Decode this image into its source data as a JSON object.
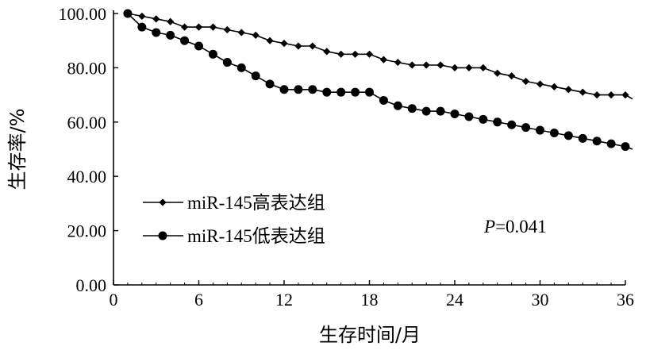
{
  "chart_data": {
    "type": "line",
    "title": "",
    "xlabel": "生存时间/月",
    "ylabel": "生存率/%",
    "xlim": [
      0,
      36
    ],
    "ylim": [
      0,
      100
    ],
    "x_ticks": [
      0,
      6,
      12,
      18,
      24,
      30,
      36
    ],
    "x_tick_labels": [
      "0",
      "6",
      "12",
      "18",
      "24",
      "30",
      "36"
    ],
    "y_ticks": [
      0,
      20,
      40,
      60,
      80,
      100
    ],
    "y_tick_labels": [
      "0.00",
      "20.00",
      "40.00",
      "60.00",
      "80.00",
      "100.00"
    ],
    "grid": false,
    "legend_position": "bottom-left",
    "annotation": {
      "p_label": "P",
      "p_value": "=0.041"
    },
    "series": [
      {
        "name": "miR-145高表达组",
        "marker": "diamond",
        "x": [
          1,
          2,
          3,
          4,
          5,
          6,
          7,
          8,
          9,
          10,
          11,
          12,
          13,
          14,
          15,
          16,
          17,
          18,
          19,
          20,
          21,
          22,
          23,
          24,
          25,
          26,
          27,
          28,
          29,
          30,
          31,
          32,
          33,
          34,
          35,
          36
        ],
        "y": [
          100,
          99,
          98,
          97,
          95,
          95,
          95,
          94,
          93,
          92,
          90,
          89,
          88,
          88,
          86,
          85,
          85,
          85,
          83,
          82,
          81,
          81,
          81,
          80,
          80,
          80,
          78,
          77,
          75,
          74,
          73,
          72,
          71,
          70,
          70,
          70
        ],
        "end": [
          36.5,
          68.5
        ]
      },
      {
        "name": "miR-145低表达组",
        "marker": "circle",
        "x": [
          1,
          2,
          3,
          4,
          5,
          6,
          7,
          8,
          9,
          10,
          11,
          12,
          13,
          14,
          15,
          16,
          17,
          18,
          19,
          20,
          21,
          22,
          23,
          24,
          25,
          26,
          27,
          28,
          29,
          30,
          31,
          32,
          33,
          34,
          35,
          36
        ],
        "y": [
          100,
          95,
          93,
          92,
          90,
          88,
          85,
          82,
          80,
          77,
          74,
          72,
          72,
          72,
          71,
          71,
          71,
          71,
          68,
          66,
          65,
          64,
          64,
          63,
          62,
          61,
          60,
          59,
          58,
          57,
          56,
          55,
          54,
          53,
          52,
          51
        ],
        "end": [
          36.5,
          50
        ]
      }
    ]
  }
}
